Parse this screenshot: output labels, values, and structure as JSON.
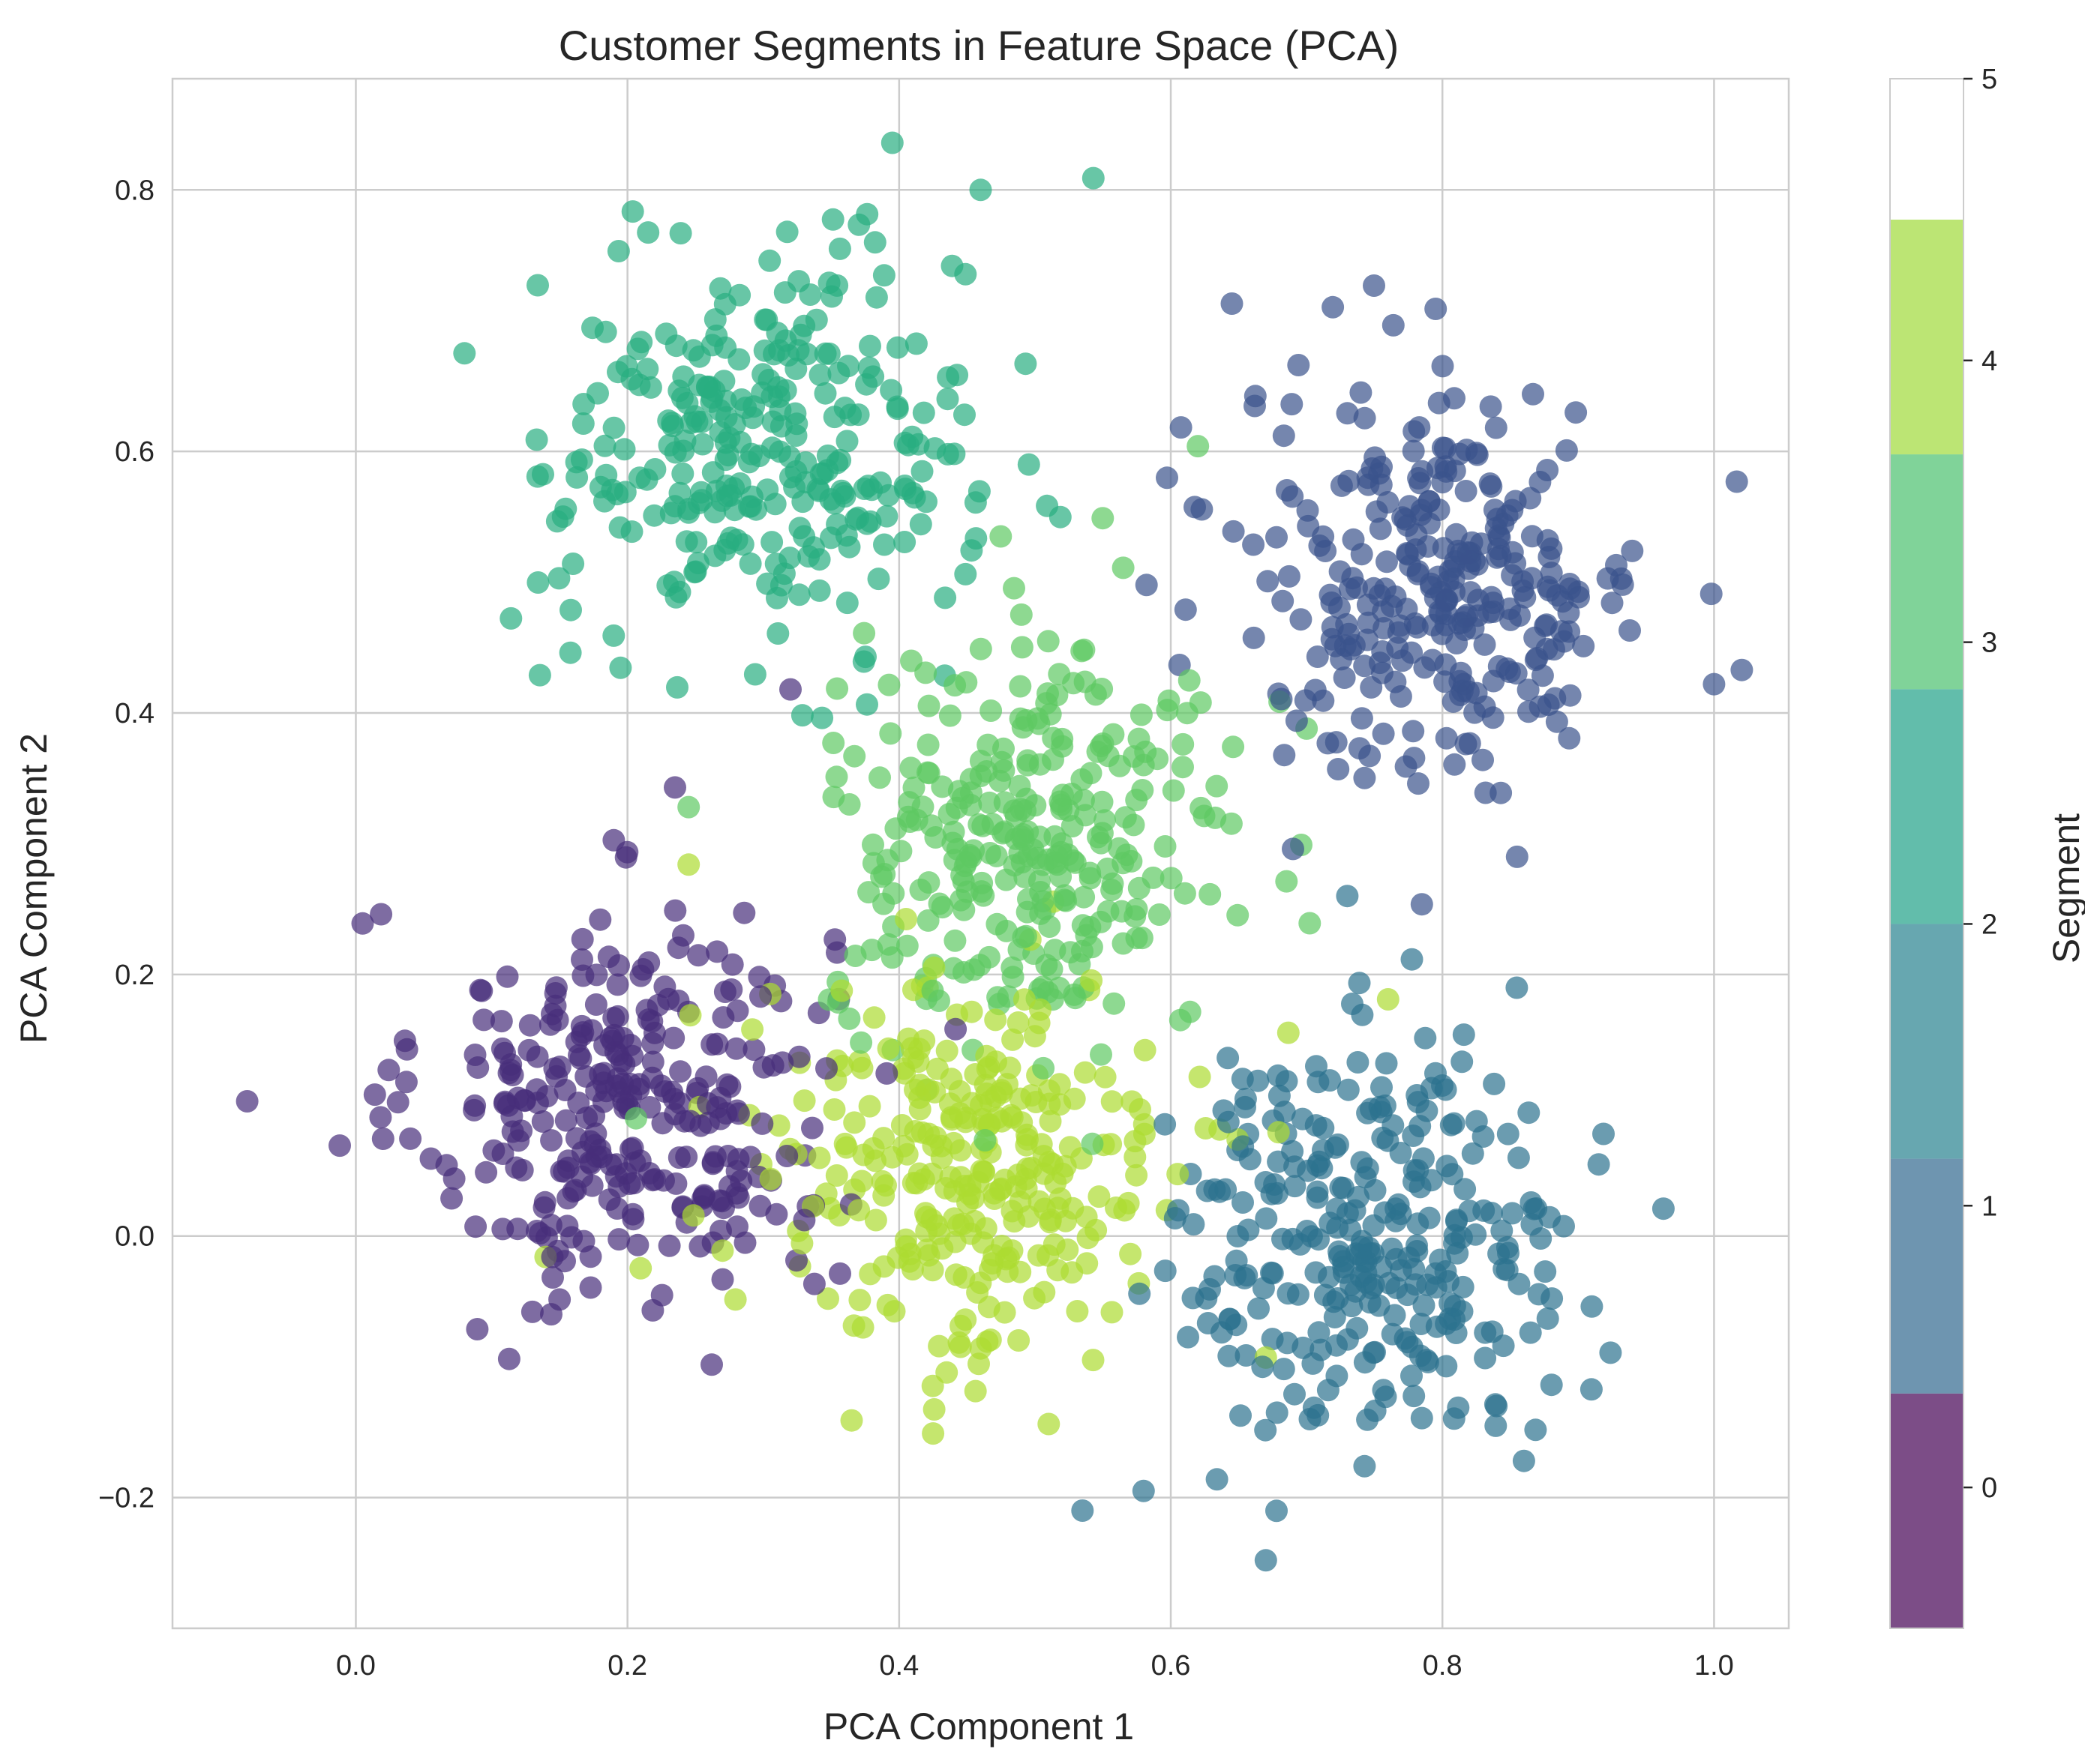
{
  "chart_data": {
    "type": "scatter",
    "title": "Customer Segments in Feature Space (PCA)",
    "xlabel": "PCA Component 1",
    "ylabel": "PCA Component 2",
    "xlim": [
      -0.135,
      1.055
    ],
    "ylim": [
      -0.3,
      0.885
    ],
    "xticks": [
      0.0,
      0.2,
      0.4,
      0.6,
      0.8,
      1.0
    ],
    "xtick_labels": [
      "0.0",
      "0.2",
      "0.4",
      "0.6",
      "0.8",
      "1.0"
    ],
    "yticks": [
      -0.2,
      0.0,
      0.2,
      0.4,
      0.6,
      0.8
    ],
    "ytick_labels": [
      "−0.2",
      "0.0",
      "0.2",
      "0.4",
      "0.6",
      "0.8"
    ],
    "grid": true,
    "colormap": "viridis",
    "marker_alpha": 0.7,
    "points_per_segment_approx": 300,
    "colorbar": {
      "label": "Segment",
      "range": [
        -0.5,
        5
      ],
      "ticks": [
        0,
        1,
        2,
        3,
        4,
        5
      ],
      "tick_labels": [
        "0",
        "1",
        "2",
        "3",
        "4",
        "5"
      ],
      "bands": [
        {
          "from": -0.5,
          "to": 0.3333,
          "color": "#440154"
        },
        {
          "from": 0.3333,
          "to": 1.1667,
          "color": "#31688e"
        },
        {
          "from": 1.1667,
          "to": 2.0,
          "color": "#26828e"
        },
        {
          "from": 2.0,
          "to": 2.8333,
          "color": "#1fa187"
        },
        {
          "from": 2.8333,
          "to": 3.6667,
          "color": "#4ac16d"
        },
        {
          "from": 3.6667,
          "to": 4.5,
          "color": "#a0da39"
        },
        {
          "from": 4.5,
          "to": 5.0,
          "color": "#ffffff"
        }
      ]
    },
    "series": [
      {
        "segment": 0,
        "color": "#472d7b",
        "center": [
          0.2,
          0.1
        ],
        "spread": 0.075
      },
      {
        "segment": 1,
        "color": "#3b528b",
        "center": [
          0.8,
          0.5
        ],
        "spread": 0.075
      },
      {
        "segment": 2,
        "color": "#2c728e",
        "center": [
          0.75,
          0.0
        ],
        "spread": 0.075
      },
      {
        "segment": 3,
        "color": "#28ae80",
        "center": [
          0.3,
          0.6
        ],
        "spread": 0.075
      },
      {
        "segment": 4,
        "color": "#5ec962",
        "center": [
          0.5,
          0.3
        ],
        "spread": 0.075
      },
      {
        "segment": 5,
        "color": "#addc30",
        "center": [
          0.45,
          0.05
        ],
        "spread": 0.075
      }
    ],
    "notable_points": [
      {
        "segment": 0,
        "x": -0.08,
        "y": 0.103
      },
      {
        "segment": 0,
        "x": 0.005,
        "y": 0.239
      },
      {
        "segment": 0,
        "x": 0.235,
        "y": 0.343
      },
      {
        "segment": 0,
        "x": 0.32,
        "y": 0.418
      },
      {
        "segment": 0,
        "x": 0.13,
        "y": -0.058
      },
      {
        "segment": 1,
        "x": 0.645,
        "y": 0.713
      },
      {
        "segment": 1,
        "x": 0.795,
        "y": 0.709
      },
      {
        "segment": 1,
        "x": 1.0,
        "y": 0.422
      },
      {
        "segment": 1,
        "x": 0.855,
        "y": 0.29
      },
      {
        "segment": 1,
        "x": 0.69,
        "y": 0.296
      },
      {
        "segment": 2,
        "x": 0.67,
        "y": -0.248
      },
      {
        "segment": 2,
        "x": 0.535,
        "y": -0.21
      },
      {
        "segment": 2,
        "x": 0.58,
        "y": -0.195
      },
      {
        "segment": 2,
        "x": 0.86,
        "y": -0.172
      },
      {
        "segment": 2,
        "x": 0.73,
        "y": 0.26
      },
      {
        "segment": 3,
        "x": 0.395,
        "y": 0.836
      },
      {
        "segment": 3,
        "x": 0.543,
        "y": 0.809
      },
      {
        "segment": 3,
        "x": 0.08,
        "y": 0.675
      },
      {
        "segment": 3,
        "x": 0.158,
        "y": 0.446
      },
      {
        "segment": 3,
        "x": 0.46,
        "y": 0.8
      },
      {
        "segment": 4,
        "x": 0.62,
        "y": 0.604
      },
      {
        "segment": 4,
        "x": 0.245,
        "y": 0.328
      },
      {
        "segment": 4,
        "x": 0.7,
        "y": 0.388
      },
      {
        "segment": 4,
        "x": 0.565,
        "y": 0.511
      },
      {
        "segment": 5,
        "x": 0.365,
        "y": -0.141
      },
      {
        "segment": 5,
        "x": 0.425,
        "y": -0.151
      },
      {
        "segment": 5,
        "x": 0.76,
        "y": 0.181
      },
      {
        "segment": 5,
        "x": 0.245,
        "y": 0.284
      },
      {
        "segment": 5,
        "x": 0.67,
        "y": -0.093
      }
    ]
  }
}
